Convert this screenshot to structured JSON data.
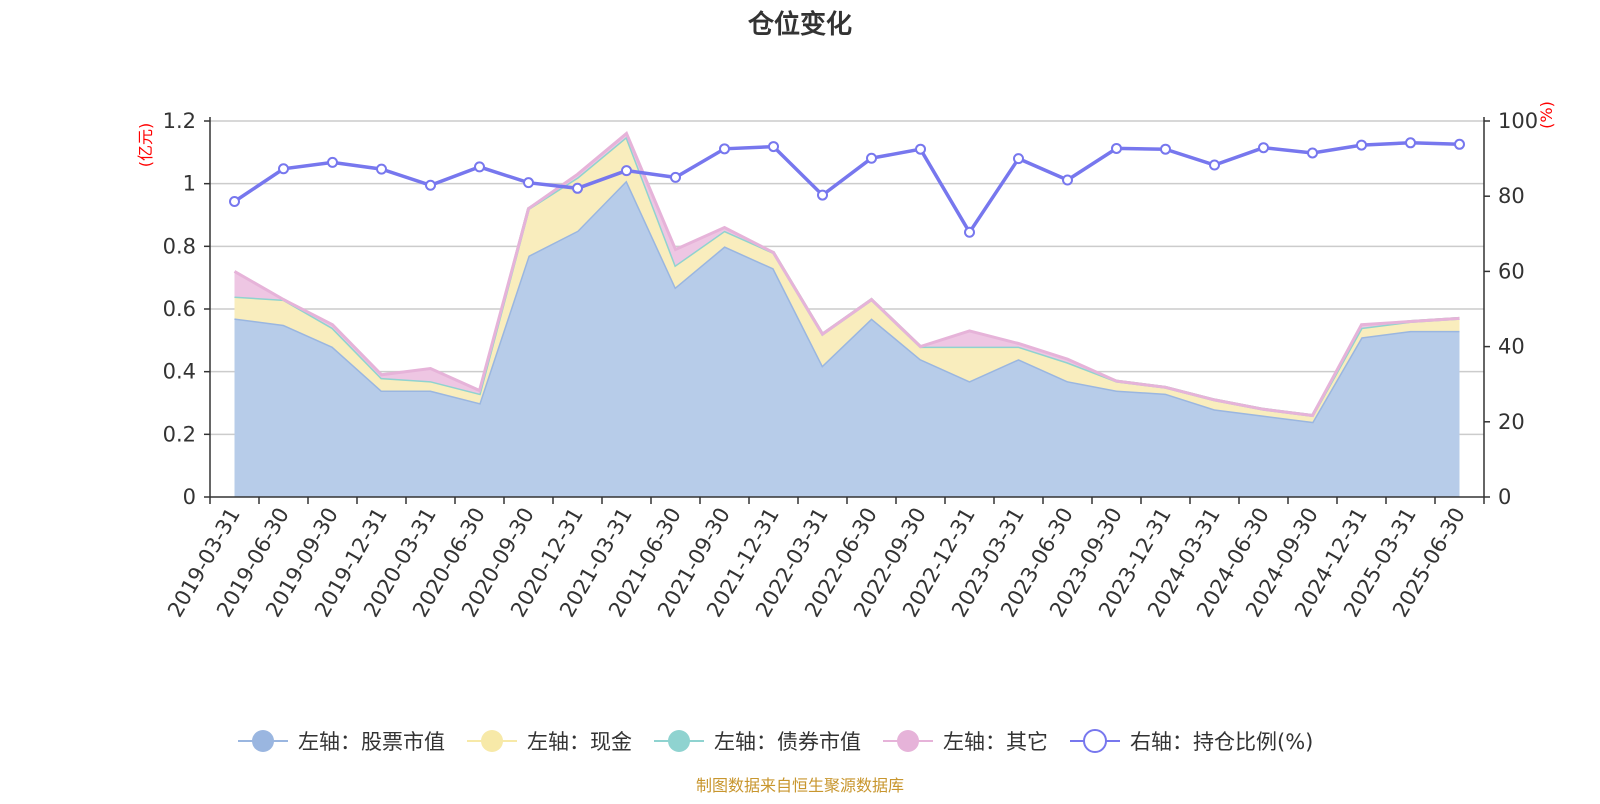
{
  "chart_data": {
    "type": "area",
    "title": "仓位变化",
    "left_axis": {
      "unit": "(亿元)",
      "ylim": [
        0,
        1.2
      ],
      "ticks": [
        "0",
        "0.2",
        "0.4",
        "0.6",
        "0.8",
        "1",
        "1.2"
      ]
    },
    "right_axis": {
      "unit": "(%)",
      "ylim": [
        0,
        100
      ],
      "ticks": [
        "0",
        "20",
        "40",
        "60",
        "80",
        "100"
      ]
    },
    "categories": [
      "2019-03-31",
      "2019-06-30",
      "2019-09-30",
      "2019-12-31",
      "2020-03-31",
      "2020-06-30",
      "2020-09-30",
      "2020-12-31",
      "2021-03-31",
      "2021-06-30",
      "2021-09-30",
      "2021-12-31",
      "2022-03-31",
      "2022-06-30",
      "2022-09-30",
      "2022-12-31",
      "2023-03-31",
      "2023-06-30",
      "2023-09-30",
      "2023-12-31",
      "2024-03-31",
      "2024-06-30",
      "2024-09-30",
      "2024-12-31",
      "2025-03-31",
      "2025-06-30"
    ],
    "series": [
      {
        "name": "左轴：股票市值",
        "axis": "left",
        "kind": "stacked-area",
        "color": "#9ab6e0",
        "fill": "#b7cce9",
        "values": [
          0.57,
          0.55,
          0.48,
          0.34,
          0.34,
          0.3,
          0.77,
          0.85,
          1.01,
          0.67,
          0.8,
          0.73,
          0.42,
          0.57,
          0.44,
          0.37,
          0.44,
          0.37,
          0.34,
          0.33,
          0.28,
          0.26,
          0.24,
          0.51,
          0.53,
          0.53
        ]
      },
      {
        "name": "左轴：现金",
        "axis": "left",
        "kind": "stacked-area",
        "color": "#f7e9a8",
        "fill": "#f9edbd",
        "values": [
          0.07,
          0.08,
          0.06,
          0.04,
          0.03,
          0.03,
          0.15,
          0.17,
          0.14,
          0.07,
          0.05,
          0.05,
          0.1,
          0.06,
          0.04,
          0.11,
          0.04,
          0.06,
          0.03,
          0.02,
          0.03,
          0.02,
          0.02,
          0.03,
          0.03,
          0.04
        ]
      },
      {
        "name": "左轴：债券市值",
        "axis": "left",
        "kind": "stacked-area",
        "color": "#8fd3d0",
        "fill": "#a8dcd9",
        "values": [
          0,
          0,
          0,
          0,
          0,
          0,
          0,
          0,
          0,
          0,
          0,
          0,
          0,
          0,
          0,
          0,
          0,
          0,
          0,
          0,
          0,
          0,
          0,
          0,
          0,
          0
        ]
      },
      {
        "name": "左轴：其它",
        "axis": "left",
        "kind": "stacked-area",
        "color": "#e6b3d9",
        "fill": "#eec6e3",
        "values": [
          0.08,
          0.0,
          0.01,
          0.01,
          0.04,
          0.01,
          0.0,
          0.01,
          0.01,
          0.05,
          0.01,
          0.0,
          0.0,
          0.0,
          0.0,
          0.05,
          0.01,
          0.01,
          0.0,
          0.0,
          0.0,
          0.0,
          0.0,
          0.01,
          0.0,
          0.0
        ]
      },
      {
        "name": "右轴：持仓比例(%)",
        "axis": "right",
        "kind": "line",
        "color": "#7777ee",
        "values": [
          78.6,
          87.3,
          89.0,
          87.2,
          82.9,
          87.8,
          83.6,
          82.1,
          86.8,
          85.0,
          92.6,
          93.2,
          80.3,
          90.1,
          92.5,
          70.4,
          90.0,
          84.3,
          92.7,
          92.5,
          88.3,
          92.9,
          91.5,
          93.6,
          94.2,
          93.8
        ]
      }
    ],
    "grid": true,
    "legend_position": "bottom-center",
    "source_note": "制图数据来自恒生聚源数据库"
  }
}
